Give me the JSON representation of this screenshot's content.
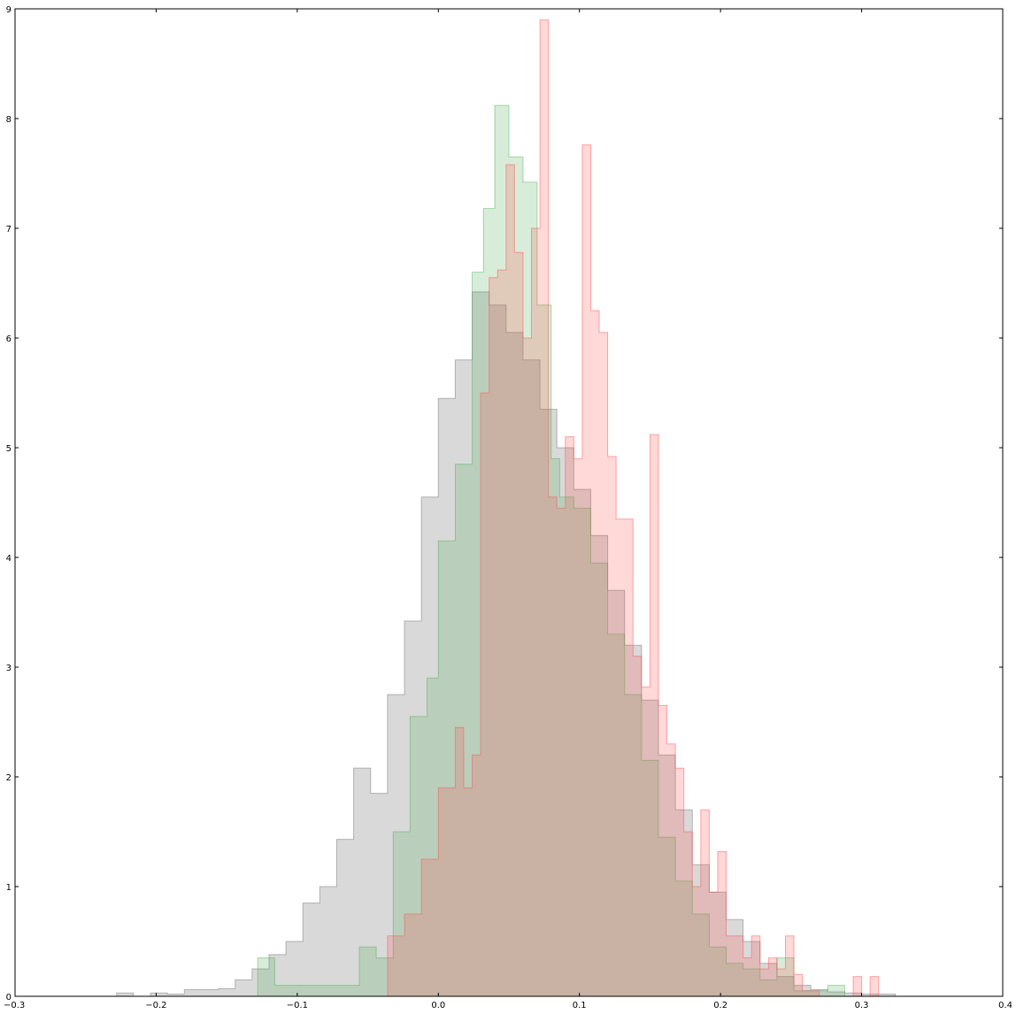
{
  "chart_data": {
    "type": "histogram",
    "title": "",
    "xlabel": "",
    "ylabel": "",
    "xlim": [
      -0.3,
      0.4
    ],
    "ylim": [
      0,
      9
    ],
    "xticks": [
      "-0.3",
      "-0.2",
      "-0.1",
      "0.0",
      "0.1",
      "0.2",
      "0.3",
      "0.4"
    ],
    "xtick_values": [
      -0.3,
      -0.2,
      -0.1,
      0.0,
      0.1,
      0.2,
      0.3,
      0.4
    ],
    "yticks": [
      "0",
      "1",
      "2",
      "3",
      "4",
      "5",
      "6",
      "7",
      "8",
      "9"
    ],
    "ytick_values": [
      0,
      1,
      2,
      3,
      4,
      5,
      6,
      7,
      8,
      9
    ],
    "grid": false,
    "legend": "none",
    "series": [
      {
        "color": "#808080",
        "opacity": 0.3,
        "edges": [
          -0.228,
          -0.216,
          -0.204,
          -0.192,
          -0.18,
          -0.168,
          -0.156,
          -0.144,
          -0.132,
          -0.12,
          -0.108,
          -0.096,
          -0.084,
          -0.072,
          -0.06,
          -0.048,
          -0.036,
          -0.024,
          -0.012,
          0.0,
          0.012,
          0.024,
          0.036,
          0.048,
          0.06,
          0.072,
          0.084,
          0.096,
          0.108,
          0.12,
          0.132,
          0.144,
          0.156,
          0.168,
          0.18,
          0.192,
          0.204,
          0.216,
          0.228,
          0.24,
          0.252,
          0.264,
          0.276,
          0.288,
          0.3,
          0.312,
          0.324
        ],
        "values": [
          0.03,
          0.0,
          0.03,
          0.02,
          0.06,
          0.06,
          0.07,
          0.15,
          0.25,
          0.38,
          0.5,
          0.85,
          1.0,
          1.43,
          2.08,
          1.85,
          2.75,
          3.42,
          4.55,
          5.45,
          5.8,
          6.42,
          6.3,
          6.05,
          5.8,
          5.35,
          5.0,
          4.62,
          4.2,
          3.7,
          3.2,
          2.7,
          2.2,
          1.7,
          1.2,
          0.95,
          0.7,
          0.5,
          0.3,
          0.18,
          0.1,
          0.06,
          0.04,
          0.03,
          0.02,
          0.02
        ]
      },
      {
        "color": "#4caf50",
        "opacity": 0.22,
        "edges": [
          -0.128,
          -0.116,
          -0.104,
          -0.092,
          -0.08,
          -0.068,
          -0.056,
          -0.044,
          -0.032,
          -0.02,
          -0.008,
          0.0,
          0.012,
          0.024,
          0.032,
          0.04,
          0.05,
          0.06,
          0.07,
          0.08,
          0.086,
          0.096,
          0.108,
          0.12,
          0.132,
          0.144,
          0.156,
          0.168,
          0.18,
          0.192,
          0.204,
          0.216,
          0.228,
          0.24,
          0.252,
          0.264,
          0.276,
          0.288
        ],
        "values": [
          0.35,
          0.1,
          0.1,
          0.1,
          0.1,
          0.1,
          0.45,
          0.35,
          1.5,
          2.55,
          2.9,
          4.15,
          4.85,
          6.6,
          7.18,
          8.12,
          7.65,
          7.42,
          6.3,
          4.9,
          4.55,
          4.45,
          3.95,
          3.3,
          2.75,
          2.15,
          1.45,
          1.05,
          0.75,
          0.45,
          0.3,
          0.25,
          0.15,
          0.35,
          0.05,
          0.05,
          0.1
        ]
      },
      {
        "color": "#ff4d4d",
        "opacity": 0.22,
        "edges": [
          -0.036,
          -0.024,
          -0.012,
          0.0,
          0.012,
          0.018,
          0.024,
          0.03,
          0.036,
          0.042,
          0.048,
          0.054,
          0.06,
          0.066,
          0.072,
          0.078,
          0.084,
          0.09,
          0.096,
          0.102,
          0.108,
          0.114,
          0.12,
          0.126,
          0.132,
          0.138,
          0.144,
          0.15,
          0.156,
          0.162,
          0.168,
          0.174,
          0.18,
          0.186,
          0.192,
          0.198,
          0.204,
          0.21,
          0.216,
          0.222,
          0.228,
          0.234,
          0.24,
          0.246,
          0.252,
          0.258,
          0.27,
          0.282,
          0.294,
          0.3,
          0.306,
          0.312,
          0.318
        ],
        "values": [
          0.55,
          0.75,
          1.25,
          1.9,
          2.45,
          1.9,
          2.2,
          5.5,
          6.55,
          6.62,
          7.58,
          6.78,
          6.0,
          7.0,
          8.9,
          4.55,
          4.45,
          5.1,
          4.9,
          7.76,
          6.25,
          6.05,
          4.92,
          4.35,
          4.35,
          3.1,
          2.82,
          5.12,
          2.65,
          2.3,
          2.08,
          1.5,
          1.0,
          1.7,
          0.95,
          1.32,
          0.55,
          0.55,
          0.35,
          0.55,
          0.25,
          0.35,
          0.25,
          0.55,
          0.2,
          0.05,
          0.0,
          0.0,
          0.18,
          0.0,
          0.18,
          0.0
        ]
      }
    ],
    "note_overlap": "Three translucent step histograms (gray, green, red) overlap; overlap regions appear tan/brown."
  }
}
